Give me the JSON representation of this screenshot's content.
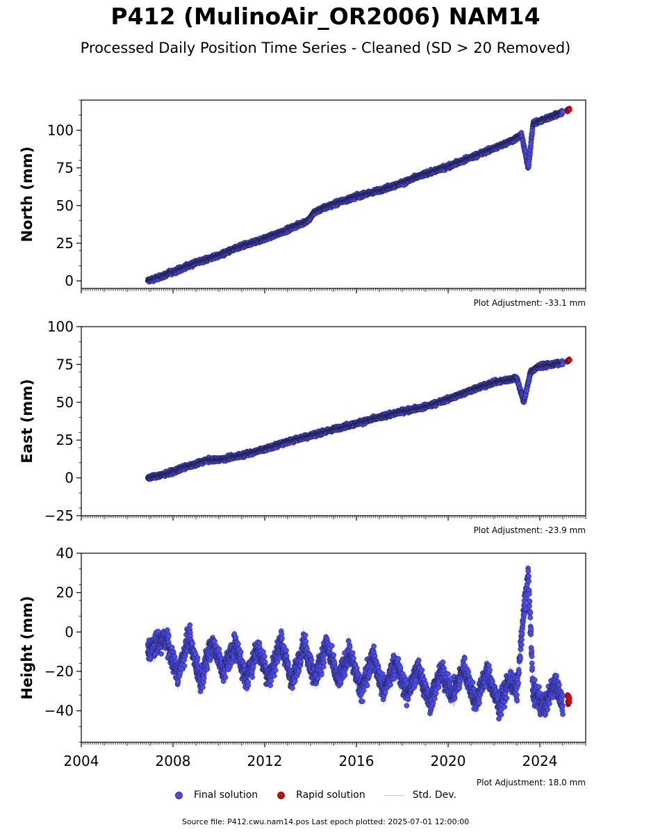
{
  "header": {
    "title": "P412 (MulinoAir_OR2006) NAM14",
    "subtitle": "Processed Daily Position Time Series - Cleaned (SD > 20 Removed)"
  },
  "legend": {
    "final": "Final solution",
    "rapid": "Rapid solution",
    "std": "Std. Dev."
  },
  "footer": {
    "source": "Source file: P412.cwu.nam14.pos  Last epoch plotted: 2025-07-01 12:00:00"
  },
  "colors": {
    "final": "#4b4bf0",
    "rapid": "#e00000",
    "std": "#999999"
  },
  "chart_data": [
    {
      "type": "scatter",
      "ylabel": "North (mm)",
      "adjustment": "Plot Adjustment: -33.1 mm",
      "xlim": [
        2004,
        2026
      ],
      "ylim": [
        -5,
        120
      ],
      "yticks": [
        0,
        25,
        50,
        75,
        100
      ],
      "yticklabels": [
        "0",
        "25",
        "50",
        "75",
        "100"
      ],
      "series": [
        {
          "name": "Final solution",
          "points": [
            [
              2006.9,
              0
            ],
            [
              2007.5,
              3
            ],
            [
              2008.0,
              6
            ],
            [
              2009.0,
              12
            ],
            [
              2010.0,
              17
            ],
            [
              2011.0,
              23
            ],
            [
              2012.0,
              28
            ],
            [
              2013.0,
              34
            ],
            [
              2013.9,
              40
            ],
            [
              2014.2,
              46
            ],
            [
              2015.0,
              51
            ],
            [
              2016.0,
              56
            ],
            [
              2017.0,
              60
            ],
            [
              2018.0,
              65
            ],
            [
              2019.0,
              71
            ],
            [
              2020.0,
              76
            ],
            [
              2021.0,
              82
            ],
            [
              2022.0,
              88
            ],
            [
              2022.9,
              94
            ],
            [
              2023.2,
              97
            ],
            [
              2023.5,
              75
            ],
            [
              2023.7,
              104
            ],
            [
              2024.0,
              106
            ],
            [
              2025.0,
              112
            ]
          ]
        },
        {
          "name": "Rapid solution",
          "points": [
            [
              2025.2,
              113
            ],
            [
              2025.3,
              114
            ]
          ]
        }
      ]
    },
    {
      "type": "scatter",
      "ylabel": "East (mm)",
      "adjustment": "Plot Adjustment: -23.9 mm",
      "xlim": [
        2004,
        2026
      ],
      "ylim": [
        -25,
        100
      ],
      "yticks": [
        -25,
        0,
        25,
        50,
        75,
        100
      ],
      "yticklabels": [
        "−25",
        "0",
        "25",
        "50",
        "75",
        "100"
      ],
      "series": [
        {
          "name": "Final solution",
          "points": [
            [
              2006.9,
              0
            ],
            [
              2007.5,
              2
            ],
            [
              2008.0,
              4
            ],
            [
              2008.5,
              7
            ],
            [
              2009.0,
              9
            ],
            [
              2009.5,
              12
            ],
            [
              2010.0,
              12
            ],
            [
              2011.0,
              15
            ],
            [
              2012.0,
              19
            ],
            [
              2013.0,
              24
            ],
            [
              2014.0,
              28
            ],
            [
              2015.0,
              32
            ],
            [
              2016.0,
              36
            ],
            [
              2017.0,
              40
            ],
            [
              2018.0,
              44
            ],
            [
              2019.0,
              47
            ],
            [
              2020.0,
              52
            ],
            [
              2021.0,
              58
            ],
            [
              2022.0,
              63
            ],
            [
              2023.0,
              66
            ],
            [
              2023.3,
              50
            ],
            [
              2023.6,
              70
            ],
            [
              2024.0,
              74
            ],
            [
              2025.0,
              76
            ]
          ]
        },
        {
          "name": "Rapid solution",
          "points": [
            [
              2025.2,
              77
            ],
            [
              2025.3,
              78
            ]
          ]
        }
      ]
    },
    {
      "type": "scatter",
      "ylabel": "Height (mm)",
      "adjustment": "Plot Adjustment: 18.0 mm",
      "xlim": [
        2004,
        2026
      ],
      "ylim": [
        -56,
        40
      ],
      "yticks": [
        -40,
        -20,
        0,
        20,
        40
      ],
      "yticklabels": [
        "−40",
        "−20",
        "0",
        "20",
        "40"
      ],
      "xticks": [
        2004,
        2008,
        2012,
        2016,
        2020,
        2024
      ],
      "xticklabels": [
        "2004",
        "2008",
        "2012",
        "2016",
        "2020",
        "2024"
      ],
      "series": [
        {
          "name": "Final solution",
          "points": [
            [
              2006.9,
              -10
            ],
            [
              2007.7,
              -3
            ],
            [
              2008.2,
              -22
            ],
            [
              2008.7,
              -2
            ],
            [
              2009.2,
              -25
            ],
            [
              2009.7,
              -5
            ],
            [
              2010.2,
              -20
            ],
            [
              2010.7,
              -6
            ],
            [
              2011.2,
              -24
            ],
            [
              2011.7,
              -8
            ],
            [
              2012.2,
              -24
            ],
            [
              2012.7,
              -5
            ],
            [
              2013.2,
              -26
            ],
            [
              2013.7,
              -6
            ],
            [
              2014.2,
              -24
            ],
            [
              2014.7,
              -6
            ],
            [
              2015.2,
              -25
            ],
            [
              2015.7,
              -10
            ],
            [
              2016.2,
              -30
            ],
            [
              2016.7,
              -12
            ],
            [
              2017.2,
              -30
            ],
            [
              2017.7,
              -15
            ],
            [
              2018.2,
              -32
            ],
            [
              2018.7,
              -18
            ],
            [
              2019.2,
              -36
            ],
            [
              2019.7,
              -20
            ],
            [
              2020.2,
              -32
            ],
            [
              2020.7,
              -18
            ],
            [
              2021.2,
              -36
            ],
            [
              2021.7,
              -20
            ],
            [
              2022.2,
              -38
            ],
            [
              2022.7,
              -24
            ],
            [
              2023.0,
              -30
            ],
            [
              2023.3,
              10
            ],
            [
              2023.5,
              30
            ],
            [
              2023.7,
              -30
            ],
            [
              2024.2,
              -38
            ],
            [
              2024.7,
              -25
            ],
            [
              2025.0,
              -38
            ]
          ]
        },
        {
          "name": "Rapid solution",
          "points": [
            [
              2025.2,
              -34
            ],
            [
              2025.3,
              -36
            ]
          ]
        }
      ]
    }
  ]
}
